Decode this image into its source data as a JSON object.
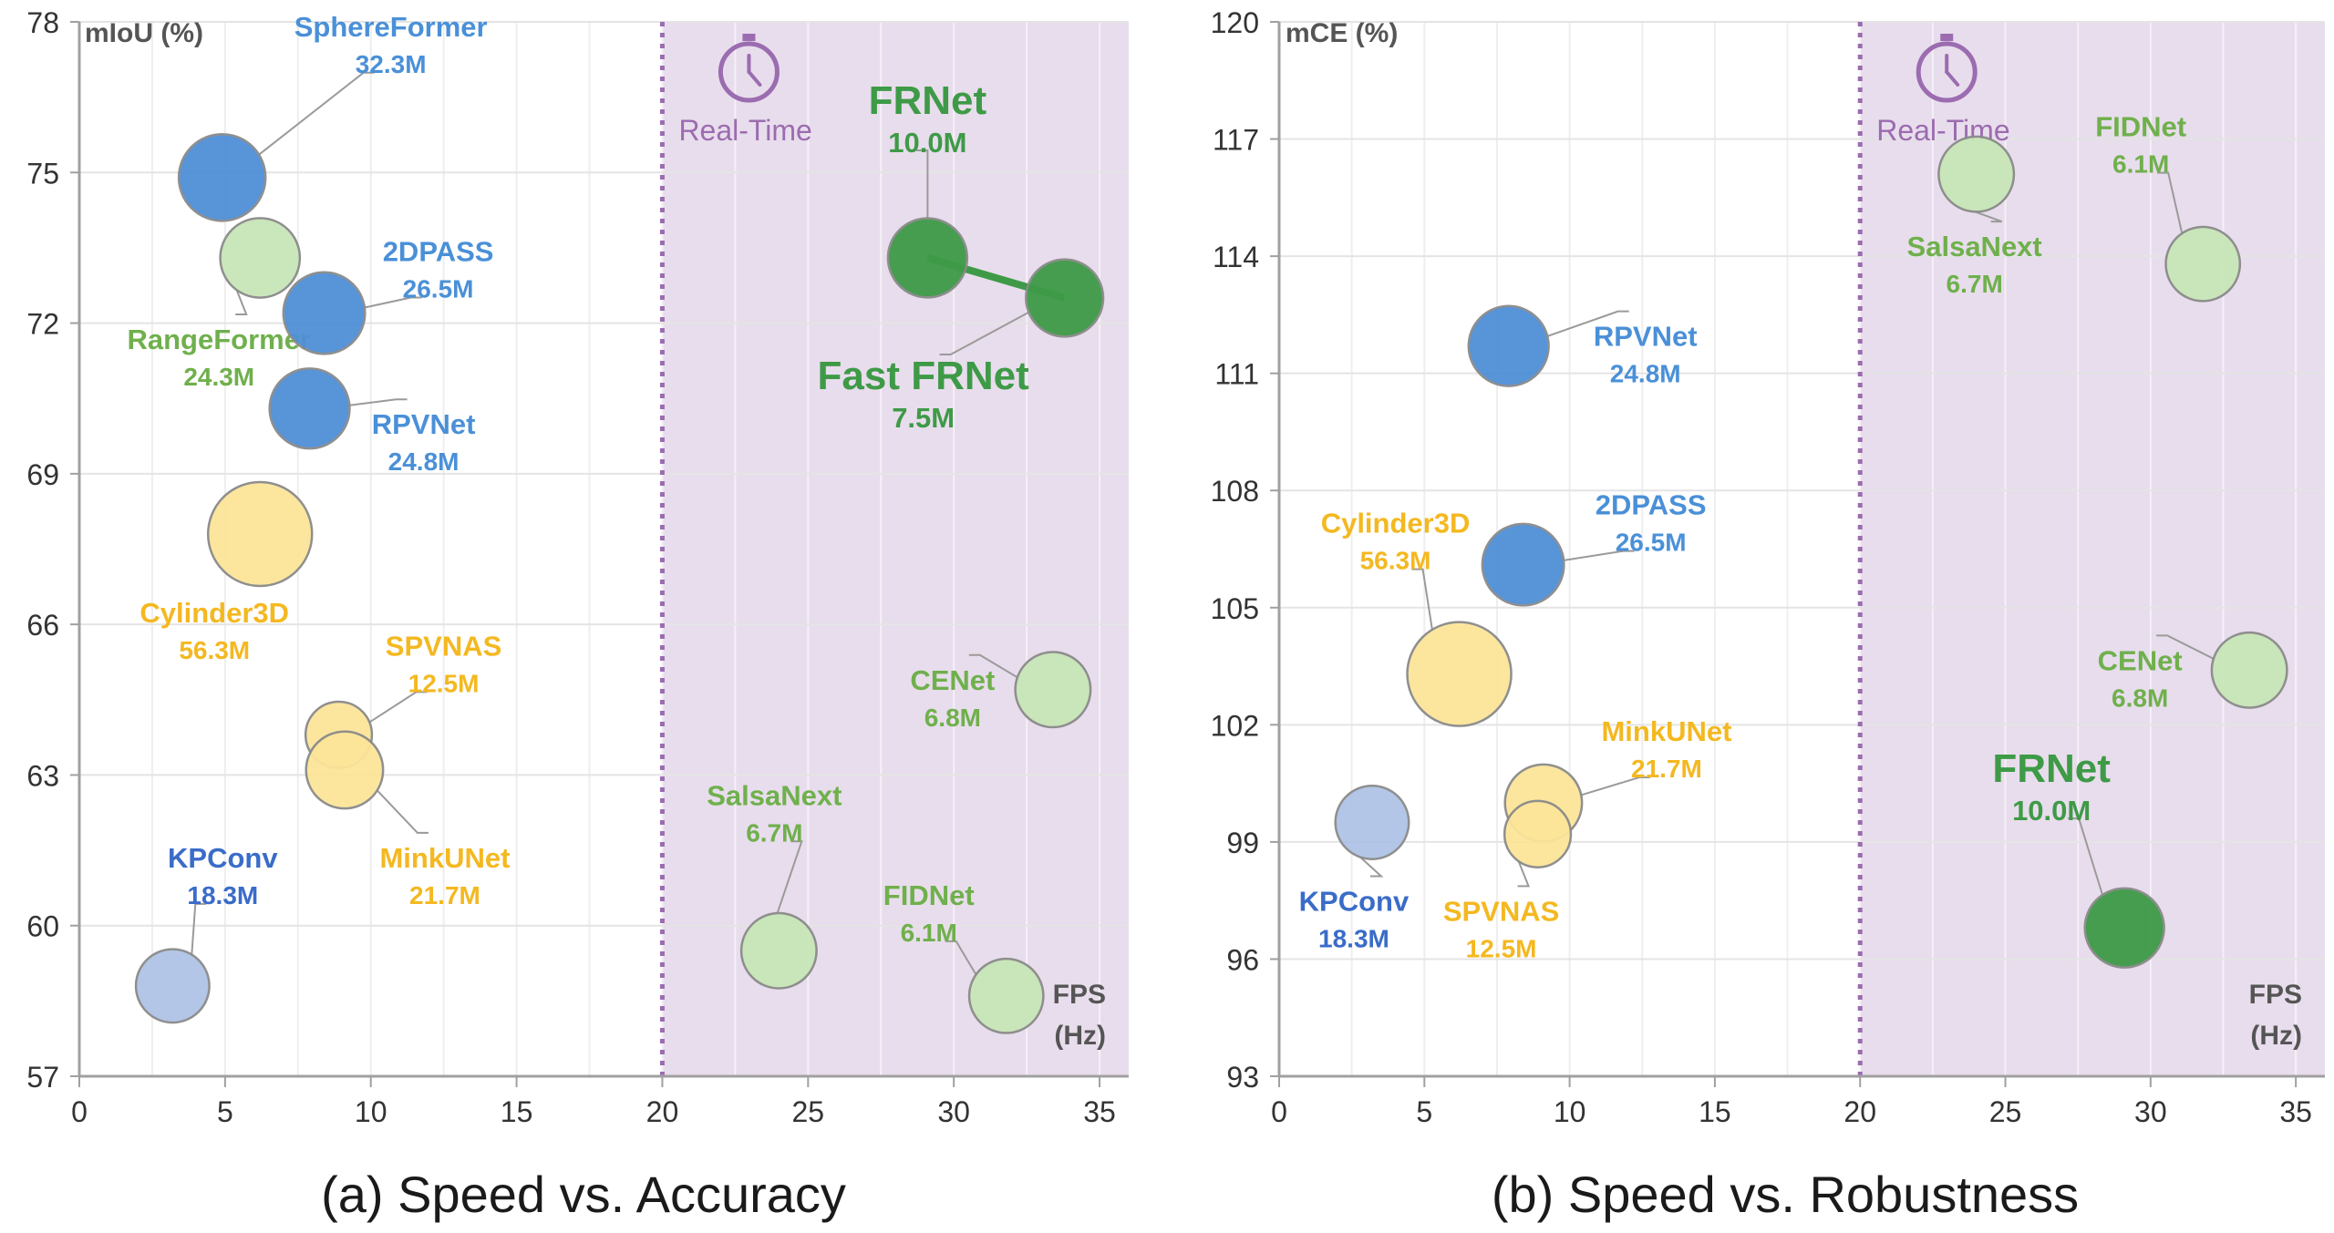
{
  "colors": {
    "blue": "#4F8FD6",
    "blue_label": "#4A90D8",
    "blue_dark": "#3A6CC8",
    "lightblue": "#AFC3E6",
    "green_light": "#C8E6B8",
    "green_light_label": "#6FB04C",
    "green": "#3E9A47",
    "green_label": "#3E9A47",
    "yellow": "#FCE599",
    "yellow_label": "#F4B820",
    "realtime_bg": "#E8DDEC",
    "realtime_line": "#9B6CB0",
    "realtime_text": "#9B6CB0"
  },
  "chart_data": [
    {
      "type": "scatter",
      "caption": "(a) Speed vs. Accuracy",
      "ylabel": "mIoU (%)",
      "xlabel": "FPS (Hz)",
      "xlim": [
        0,
        36
      ],
      "ylim": [
        57,
        78
      ],
      "xticks": [
        "0",
        "5",
        "10",
        "15",
        "20",
        "25",
        "30",
        "35"
      ],
      "yticks": [
        "57",
        "60",
        "63",
        "66",
        "69",
        "72",
        "75",
        "78"
      ],
      "realtime_threshold": 20,
      "realtime_label": "Real-Time",
      "points": [
        {
          "name": "SphereFormer",
          "params": "32.3M",
          "x": 4.9,
          "y": 74.9,
          "size": 32.3,
          "color": "blue",
          "label_color": "blue_label"
        },
        {
          "name": "RangeFormer",
          "params": "24.3M",
          "x": 6.2,
          "y": 73.3,
          "size": 24.3,
          "color": "green_light",
          "label_color": "green_light_label"
        },
        {
          "name": "2DPASS",
          "params": "26.5M",
          "x": 8.4,
          "y": 72.2,
          "size": 26.5,
          "color": "blue",
          "label_color": "blue_label"
        },
        {
          "name": "RPVNet",
          "params": "24.8M",
          "x": 7.9,
          "y": 70.3,
          "size": 24.8,
          "color": "blue",
          "label_color": "blue_label"
        },
        {
          "name": "Cylinder3D",
          "params": "56.3M",
          "x": 6.2,
          "y": 67.8,
          "size": 56.3,
          "color": "yellow",
          "label_color": "yellow_label"
        },
        {
          "name": "SPVNAS",
          "params": "12.5M",
          "x": 8.9,
          "y": 63.8,
          "size": 12.5,
          "color": "yellow",
          "label_color": "yellow_label"
        },
        {
          "name": "MinkUNet",
          "params": "21.7M",
          "x": 9.1,
          "y": 63.1,
          "size": 21.7,
          "color": "yellow",
          "label_color": "yellow_label"
        },
        {
          "name": "KPConv",
          "params": "18.3M",
          "x": 3.2,
          "y": 58.8,
          "size": 18.3,
          "color": "lightblue",
          "label_color": "blue_dark"
        },
        {
          "name": "FRNet",
          "params": "10.0M",
          "x": 29.1,
          "y": 73.3,
          "size": 24,
          "color": "green",
          "label_color": "green_label"
        },
        {
          "name": "Fast FRNet",
          "params": "7.5M",
          "x": 33.8,
          "y": 72.5,
          "size": 22,
          "color": "green",
          "label_color": "green_label"
        },
        {
          "name": "CENet",
          "params": "6.8M",
          "x": 33.4,
          "y": 64.7,
          "size": 20,
          "color": "green_light",
          "label_color": "green_light_label"
        },
        {
          "name": "SalsaNext",
          "params": "6.7M",
          "x": 24.0,
          "y": 59.5,
          "size": 20,
          "color": "green_light",
          "label_color": "green_light_label"
        },
        {
          "name": "FIDNet",
          "params": "6.1M",
          "x": 31.8,
          "y": 58.6,
          "size": 19,
          "color": "green_light",
          "label_color": "green_light_label"
        }
      ]
    },
    {
      "type": "scatter",
      "caption": "(b) Speed vs. Robustness",
      "ylabel": "mCE (%)",
      "xlabel": "FPS (Hz)",
      "xlim": [
        0,
        36
      ],
      "ylim": [
        93,
        120
      ],
      "xticks": [
        "0",
        "5",
        "10",
        "15",
        "20",
        "25",
        "30",
        "35"
      ],
      "yticks": [
        "93",
        "96",
        "99",
        "102",
        "105",
        "108",
        "111",
        "114",
        "117",
        "120"
      ],
      "realtime_threshold": 20,
      "realtime_label": "Real-Time",
      "points": [
        {
          "name": "SalsaNext",
          "params": "6.7M",
          "x": 24.0,
          "y": 116.1,
          "size": 20,
          "color": "green_light",
          "label_color": "green_light_label"
        },
        {
          "name": "FIDNet",
          "params": "6.1M",
          "x": 31.8,
          "y": 113.8,
          "size": 19,
          "color": "green_light",
          "label_color": "green_light_label"
        },
        {
          "name": "RPVNet",
          "params": "24.8M",
          "x": 7.9,
          "y": 111.7,
          "size": 24.8,
          "color": "blue",
          "label_color": "blue_label"
        },
        {
          "name": "2DPASS",
          "params": "26.5M",
          "x": 8.4,
          "y": 106.1,
          "size": 26.5,
          "color": "blue",
          "label_color": "blue_label"
        },
        {
          "name": "Cylinder3D",
          "params": "56.3M",
          "x": 6.2,
          "y": 103.3,
          "size": 56.3,
          "color": "yellow",
          "label_color": "yellow_label"
        },
        {
          "name": "MinkUNet",
          "params": "21.7M",
          "x": 9.1,
          "y": 100.0,
          "size": 21.7,
          "color": "yellow",
          "label_color": "yellow_label"
        },
        {
          "name": "SPVNAS",
          "params": "12.5M",
          "x": 8.9,
          "y": 99.2,
          "size": 12.5,
          "color": "yellow",
          "label_color": "yellow_label"
        },
        {
          "name": "KPConv",
          "params": "18.3M",
          "x": 3.2,
          "y": 99.5,
          "size": 18.3,
          "color": "lightblue",
          "label_color": "blue_dark"
        },
        {
          "name": "CENet",
          "params": "6.8M",
          "x": 33.4,
          "y": 103.4,
          "size": 20,
          "color": "green_light",
          "label_color": "green_light_label"
        },
        {
          "name": "FRNet",
          "params": "10.0M",
          "x": 29.1,
          "y": 96.8,
          "size": 24,
          "color": "green",
          "label_color": "green_label"
        }
      ]
    }
  ]
}
